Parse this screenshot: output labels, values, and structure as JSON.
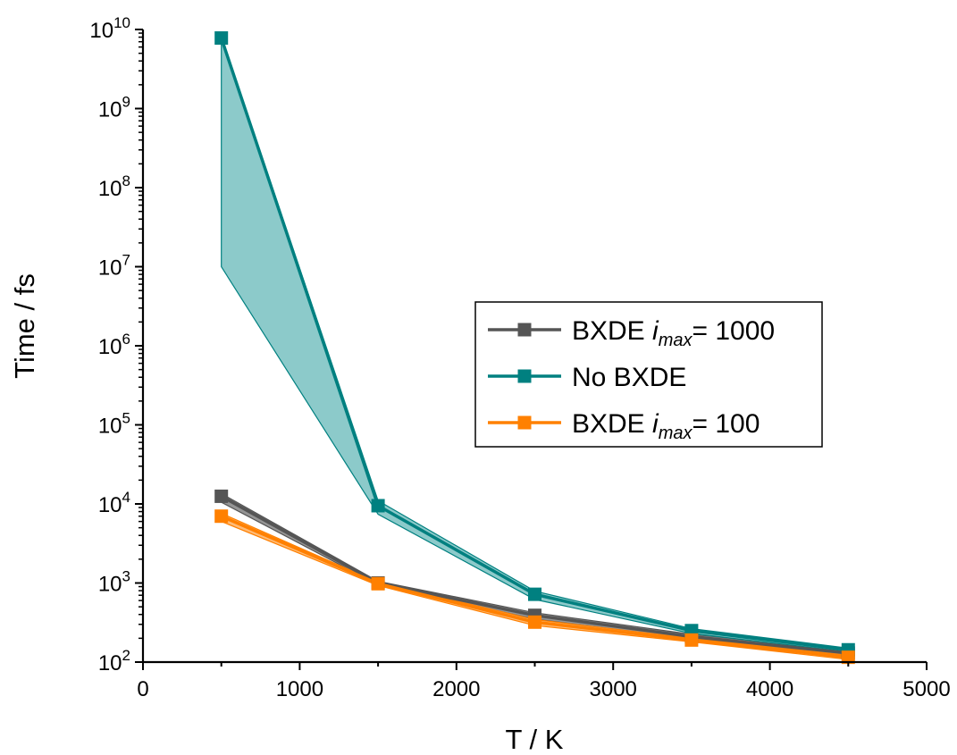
{
  "chart_data": {
    "type": "line",
    "xlabel": "T / K",
    "ylabel": "Time / fs",
    "xlim": [
      0,
      5000
    ],
    "ylim": [
      100,
      10000000000
    ],
    "yscale": "log",
    "x_ticks": [
      "0",
      "1000",
      "2000",
      "3000",
      "4000",
      "5000"
    ],
    "y_ticks": [
      {
        "base": "10",
        "exp": "2"
      },
      {
        "base": "10",
        "exp": "3"
      },
      {
        "base": "10",
        "exp": "4"
      },
      {
        "base": "10",
        "exp": "5"
      },
      {
        "base": "10",
        "exp": "6"
      },
      {
        "base": "10",
        "exp": "7"
      },
      {
        "base": "10",
        "exp": "8"
      },
      {
        "base": "10",
        "exp": "9"
      },
      {
        "base": "10",
        "exp": "10"
      }
    ],
    "legend_position": "center-right",
    "series": [
      {
        "name": "BXDE i_max= 1000",
        "legend": {
          "prefix": "BXDE ",
          "italic": "i",
          "sub": "max",
          "suffix": "= 1000"
        },
        "color": "#555555",
        "band_color": "#8a8a8a",
        "x": [
          500,
          1500,
          2500,
          3500,
          4500
        ],
        "y": [
          12500,
          1000,
          390,
          210,
          130
        ],
        "band_low": [
          10500,
          950,
          350,
          195,
          115
        ],
        "band_high": [
          13500,
          1050,
          420,
          225,
          140
        ]
      },
      {
        "name": "No BXDE",
        "legend": {
          "prefix": "No BXDE",
          "italic": "",
          "sub": "",
          "suffix": ""
        },
        "color": "#008080",
        "band_color": "#80c4c4",
        "x": [
          500,
          1500,
          2500,
          3500,
          4500
        ],
        "y": [
          7800000000,
          9500,
          720,
          250,
          143
        ],
        "band_low": [
          10000000,
          7400,
          620,
          230,
          135
        ],
        "band_high": [
          8200000000,
          11000,
          790,
          265,
          150
        ]
      },
      {
        "name": "BXDE i_max= 100",
        "legend": {
          "prefix": "BXDE ",
          "italic": "i",
          "sub": "max",
          "suffix": "= 100"
        },
        "color": "#ff8000",
        "band_color": "#ffb266",
        "x": [
          500,
          1500,
          2500,
          3500,
          4500
        ],
        "y": [
          7000,
          980,
          320,
          190,
          115
        ],
        "band_low": [
          6000,
          930,
          290,
          180,
          108
        ],
        "band_high": [
          7600,
          1020,
          345,
          200,
          122
        ]
      }
    ]
  }
}
